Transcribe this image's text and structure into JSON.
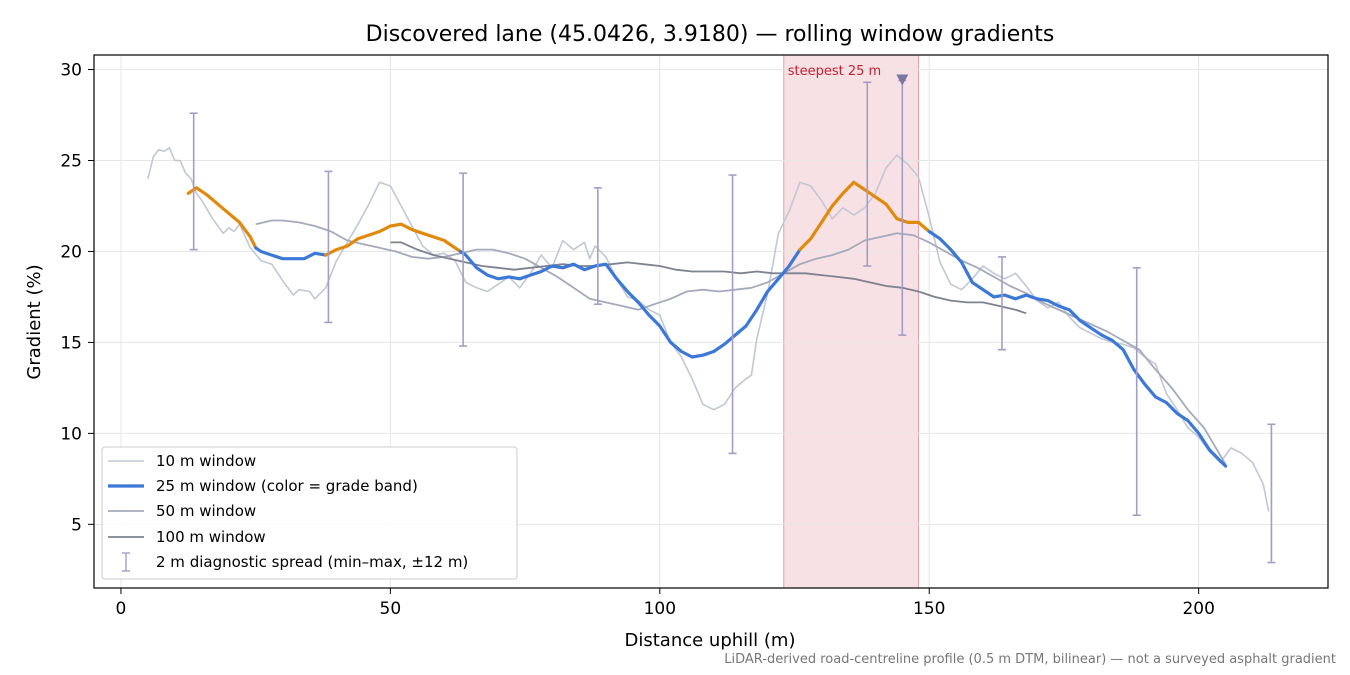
{
  "chart_data": {
    "type": "line",
    "title": "Discovered lane (45.0426, 3.9180) — rolling window gradients",
    "xlabel": "Distance uphill (m)",
    "ylabel": "Gradient (%)",
    "xlim": [
      -5,
      224
    ],
    "ylim": [
      1.5,
      30.8
    ],
    "xticks": [
      0,
      50,
      100,
      150,
      200
    ],
    "yticks": [
      5,
      10,
      15,
      20,
      25,
      30
    ],
    "grid": true,
    "legend_position": "lower left",
    "colors": {
      "w10": "#c1c8d4",
      "w25_blue": "#3b78d8",
      "w25_orange": "#e0890b",
      "w50": "#a3aabc",
      "w100": "#7d8290",
      "errorbar": "#a49ec6",
      "highlight": "#f1c9ce",
      "steepest_text": "#c8202f",
      "marker": "#7b76a2"
    },
    "highlight": {
      "x_start": 123,
      "x_end": 148,
      "label": "steepest 25 m",
      "marker_x": 145,
      "marker_y": 29.4
    },
    "series": [
      {
        "name": "10 m window",
        "x": [
          5,
          6,
          7,
          8,
          9,
          10,
          11,
          12,
          13,
          14,
          15,
          16,
          17,
          18,
          19,
          20,
          21,
          22,
          24,
          26,
          28,
          30,
          32,
          33,
          35,
          36,
          38,
          40,
          42,
          44,
          46,
          48,
          50,
          52,
          54,
          56,
          58,
          60,
          62,
          64,
          66,
          68,
          70,
          72,
          74,
          76,
          78,
          80,
          82,
          84,
          86,
          87,
          88,
          90,
          92,
          94,
          96,
          98,
          100,
          102,
          104,
          106,
          108,
          110,
          112,
          114,
          116,
          117,
          118,
          120,
          122,
          124,
          126,
          128,
          130,
          132,
          134,
          136,
          138,
          140,
          142,
          144,
          146,
          148,
          150,
          152,
          154,
          156,
          158,
          160,
          162,
          164,
          166,
          168,
          170,
          172,
          174,
          176,
          178,
          180,
          182,
          184,
          186,
          188,
          190,
          192,
          194,
          196,
          198,
          200,
          202,
          204,
          206,
          208,
          210,
          212,
          213
        ],
        "values": [
          24.0,
          25.2,
          25.6,
          25.5,
          25.7,
          25.0,
          25.0,
          24.3,
          24.0,
          23.2,
          22.8,
          22.3,
          21.8,
          21.4,
          21.0,
          21.3,
          21.1,
          21.5,
          20.2,
          19.5,
          19.3,
          18.4,
          17.6,
          17.9,
          17.8,
          17.4,
          18.0,
          19.5,
          20.5,
          21.5,
          22.6,
          23.8,
          23.6,
          22.5,
          21.4,
          20.3,
          19.8,
          19.9,
          19.5,
          18.3,
          18.0,
          17.8,
          18.2,
          18.6,
          18.0,
          18.8,
          19.8,
          19.1,
          20.6,
          20.1,
          20.5,
          19.6,
          20.3,
          19.7,
          18.5,
          17.5,
          17.3,
          16.8,
          16.5,
          15.0,
          14.2,
          13.0,
          11.6,
          11.3,
          11.6,
          12.5,
          13.0,
          13.2,
          15.2,
          17.7,
          21.0,
          22.2,
          23.8,
          23.6,
          22.8,
          21.8,
          22.4,
          22.0,
          22.4,
          23.2,
          24.6,
          25.3,
          24.8,
          24.1,
          21.9,
          19.4,
          18.2,
          17.9,
          18.5,
          19.2,
          18.8,
          18.5,
          18.8,
          18.1,
          17.3,
          16.9,
          17.2,
          16.4,
          15.8,
          15.5,
          15.2,
          15.0,
          14.9,
          14.7,
          14.2,
          13.8,
          12.2,
          11.3,
          10.3,
          9.8,
          9.0,
          8.4,
          9.2,
          8.9,
          8.4,
          7.2,
          5.7
        ]
      },
      {
        "name": "25 m window (color = grade band)",
        "x": [
          12.5,
          14,
          16,
          18,
          20,
          22,
          24,
          25,
          26,
          28,
          30,
          32,
          34,
          36,
          38,
          40,
          42,
          44,
          46,
          48,
          50,
          52,
          54,
          56,
          58,
          60,
          62,
          63,
          64,
          66,
          68,
          70,
          72,
          74,
          76,
          78,
          80,
          82,
          84,
          86,
          88,
          90,
          92,
          94,
          96,
          98,
          100,
          102,
          104,
          106,
          108,
          110,
          112,
          114,
          116,
          118,
          120,
          122,
          124,
          126,
          128,
          130,
          132,
          134,
          136,
          138,
          140,
          142,
          144,
          146,
          148,
          150,
          152,
          154,
          156,
          158,
          160,
          162,
          164,
          166,
          168,
          170,
          172,
          174,
          176,
          178,
          180,
          182,
          184,
          186,
          188,
          190,
          192,
          194,
          196,
          198,
          200,
          202,
          204,
          205
        ],
        "values": [
          23.2,
          23.5,
          23.1,
          22.6,
          22.1,
          21.6,
          20.8,
          20.2,
          20.0,
          19.8,
          19.6,
          19.6,
          19.6,
          19.9,
          19.8,
          20.1,
          20.3,
          20.7,
          20.9,
          21.1,
          21.4,
          21.5,
          21.2,
          21.0,
          20.8,
          20.6,
          20.2,
          20.0,
          19.8,
          19.1,
          18.7,
          18.5,
          18.6,
          18.5,
          18.7,
          18.9,
          19.2,
          19.1,
          19.3,
          19.0,
          19.2,
          19.3,
          18.5,
          17.8,
          17.2,
          16.5,
          15.9,
          15.0,
          14.5,
          14.2,
          14.3,
          14.5,
          14.9,
          15.4,
          15.9,
          16.8,
          17.8,
          18.5,
          19.2,
          20.1,
          20.7,
          21.6,
          22.5,
          23.2,
          23.8,
          23.4,
          23.0,
          22.6,
          21.8,
          21.6,
          21.6,
          21.1,
          20.7,
          20.1,
          19.4,
          18.3,
          17.9,
          17.5,
          17.6,
          17.4,
          17.6,
          17.4,
          17.3,
          17.0,
          16.8,
          16.2,
          15.8,
          15.4,
          15.1,
          14.6,
          13.5,
          12.7,
          12.0,
          11.7,
          11.1,
          10.7,
          10.0,
          9.1,
          8.5,
          8.2
        ],
        "orange_ranges": [
          [
            12.5,
            25
          ],
          [
            38,
            63
          ],
          [
            126,
            150
          ]
        ]
      },
      {
        "name": "50 m window",
        "x": [
          25,
          28,
          30,
          33,
          36,
          39,
          42,
          45,
          48,
          51,
          54,
          57,
          60,
          63,
          66,
          69,
          72,
          75,
          78,
          81,
          84,
          87,
          90,
          93,
          96,
          99,
          102,
          105,
          108,
          111,
          114,
          117,
          120,
          123,
          126,
          129,
          132,
          135,
          138,
          141,
          144,
          147,
          150,
          153,
          156,
          159,
          162,
          165,
          168,
          171,
          174,
          177,
          180,
          183,
          186,
          189,
          192,
          195,
          198,
          201,
          204,
          205
        ],
        "values": [
          21.5,
          21.7,
          21.7,
          21.6,
          21.4,
          21.1,
          20.6,
          20.4,
          20.2,
          20.0,
          19.7,
          19.6,
          19.7,
          19.9,
          20.1,
          20.1,
          19.9,
          19.6,
          19.1,
          18.6,
          18.0,
          17.4,
          17.2,
          17.0,
          16.8,
          17.1,
          17.4,
          17.8,
          17.9,
          17.8,
          17.9,
          18.0,
          18.3,
          18.8,
          19.3,
          19.6,
          19.8,
          20.1,
          20.6,
          20.8,
          21.0,
          20.9,
          20.5,
          20.0,
          19.5,
          19.1,
          18.6,
          18.1,
          17.7,
          17.2,
          16.8,
          16.4,
          16.0,
          15.6,
          15.1,
          14.6,
          13.5,
          12.5,
          11.3,
          10.3,
          8.8,
          8.3
        ]
      },
      {
        "name": "100 m window",
        "x": [
          50,
          52,
          55,
          58,
          61,
          64,
          67,
          70,
          73,
          76,
          79,
          82,
          85,
          88,
          91,
          94,
          97,
          100,
          103,
          106,
          109,
          112,
          115,
          118,
          121,
          124,
          127,
          130,
          133,
          136,
          139,
          142,
          145,
          148,
          151,
          154,
          157,
          160,
          163,
          166,
          168
        ],
        "values": [
          20.5,
          20.5,
          20.1,
          19.8,
          19.6,
          19.4,
          19.2,
          19.1,
          19.0,
          19.1,
          19.2,
          19.3,
          19.2,
          19.2,
          19.3,
          19.4,
          19.3,
          19.2,
          19.0,
          18.9,
          18.9,
          18.9,
          18.8,
          18.9,
          18.8,
          18.8,
          18.8,
          18.7,
          18.6,
          18.5,
          18.3,
          18.1,
          18.0,
          17.8,
          17.5,
          17.3,
          17.2,
          17.2,
          17.0,
          16.8,
          16.6
        ]
      }
    ],
    "errorbars": [
      {
        "x": 13.5,
        "low": 20.1,
        "high": 27.6
      },
      {
        "x": 38.5,
        "low": 16.1,
        "high": 24.4
      },
      {
        "x": 63.5,
        "low": 14.8,
        "high": 24.3
      },
      {
        "x": 88.5,
        "low": 17.1,
        "high": 23.5
      },
      {
        "x": 113.5,
        "low": 8.9,
        "high": 24.2
      },
      {
        "x": 138.5,
        "low": 19.2,
        "high": 29.3
      },
      {
        "x": 145,
        "low": 15.4,
        "high": 29.4
      },
      {
        "x": 163.5,
        "low": 14.6,
        "high": 19.7
      },
      {
        "x": 188.5,
        "low": 5.5,
        "high": 19.1
      },
      {
        "x": 213.5,
        "low": 2.9,
        "high": 10.5
      }
    ],
    "errorbar_label": "2 m diagnostic spread (min–max, ±12 m)"
  },
  "caption": "LiDAR-derived road-centreline profile (0.5 m DTM, bilinear) — not a surveyed asphalt gradient"
}
